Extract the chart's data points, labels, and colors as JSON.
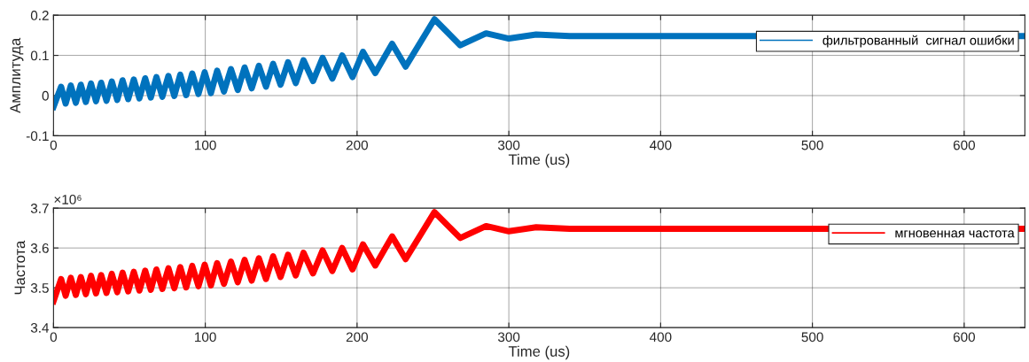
{
  "chart_data": [
    {
      "type": "line",
      "xlabel": "Time (us)",
      "ylabel": "Амплитуда",
      "x": [
        0,
        5,
        8,
        11.4,
        14.7,
        18,
        21.3,
        24.7,
        28,
        31.4,
        34.9,
        38.4,
        42,
        45.5,
        49.2,
        52.9,
        56.6,
        60.4,
        64.1,
        67.8,
        71.7,
        75.7,
        79.6,
        83.5,
        87.4,
        91.4,
        95.5,
        99.6,
        103.7,
        107.8,
        112.3,
        116.9,
        121.4,
        125.9,
        130.6,
        135.3,
        140,
        144.7,
        149.6,
        154.5,
        159.6,
        164.7,
        171,
        177.3,
        183.7,
        190.2,
        197,
        203.9,
        212,
        223.1,
        232,
        251,
        268,
        285,
        300,
        318,
        340,
        640
      ],
      "series": [
        {
          "name": "фильтрованный  сигнал ошибки",
          "color": "#0072bd",
          "values": [
            -0.028,
            0.022,
            -0.02,
            0.025,
            -0.018,
            0.027,
            -0.016,
            0.03,
            -0.014,
            0.032,
            -0.013,
            0.035,
            -0.011,
            0.038,
            -0.009,
            0.04,
            -0.007,
            0.043,
            -0.005,
            0.046,
            -0.003,
            0.049,
            -0.001,
            0.052,
            0.001,
            0.055,
            0.004,
            0.058,
            0.006,
            0.062,
            0.01,
            0.066,
            0.014,
            0.07,
            0.018,
            0.074,
            0.022,
            0.079,
            0.027,
            0.083,
            0.031,
            0.088,
            0.036,
            0.094,
            0.042,
            0.1,
            0.046,
            0.109,
            0.056,
            0.129,
            0.072,
            0.19,
            0.125,
            0.155,
            0.142,
            0.152,
            0.148,
            0.148
          ]
        }
      ],
      "xlim": [
        0,
        640
      ],
      "xticks": [
        0,
        100,
        200,
        300,
        400,
        500,
        600
      ],
      "ylim": [
        -0.1,
        0.2
      ],
      "yticks": [
        -0.1,
        0,
        0.1,
        0.2
      ],
      "grid": true,
      "legend": "top right",
      "line_style": "solid"
    },
    {
      "type": "line",
      "xlabel": "Time (us)",
      "ylabel": "Частота",
      "annotations": [
        "×10⁶"
      ],
      "x": [
        0,
        5,
        8,
        11.4,
        14.7,
        18,
        21.3,
        24.7,
        28,
        31.4,
        34.9,
        38.4,
        42,
        45.5,
        49.2,
        52.9,
        56.6,
        60.4,
        64.1,
        67.8,
        71.7,
        75.7,
        79.6,
        83.5,
        87.4,
        91.4,
        95.5,
        99.6,
        103.7,
        107.8,
        112.3,
        116.9,
        121.4,
        125.9,
        130.6,
        135.3,
        140,
        144.7,
        149.6,
        154.5,
        159.6,
        164.7,
        171,
        177.3,
        183.7,
        190.2,
        197,
        203.9,
        212,
        223.1,
        232,
        251,
        268,
        285,
        300,
        318,
        340,
        640
      ],
      "series": [
        {
          "name": "мгновенная частота",
          "color": "#ff0000",
          "values": [
            3.466,
            3.522,
            3.48,
            3.525,
            3.482,
            3.527,
            3.484,
            3.53,
            3.486,
            3.532,
            3.487,
            3.535,
            3.489,
            3.538,
            3.491,
            3.54,
            3.493,
            3.543,
            3.495,
            3.546,
            3.497,
            3.549,
            3.499,
            3.552,
            3.501,
            3.555,
            3.504,
            3.558,
            3.506,
            3.562,
            3.51,
            3.566,
            3.514,
            3.57,
            3.518,
            3.574,
            3.522,
            3.579,
            3.527,
            3.583,
            3.531,
            3.588,
            3.536,
            3.594,
            3.542,
            3.6,
            3.546,
            3.609,
            3.556,
            3.629,
            3.572,
            3.69,
            3.625,
            3.655,
            3.642,
            3.652,
            3.648,
            3.648
          ]
        }
      ],
      "xlim": [
        0,
        640
      ],
      "xticks": [
        0,
        100,
        200,
        300,
        400,
        500,
        600
      ],
      "ylim": [
        3.4,
        3.7
      ],
      "yticks": [
        3.4,
        3.5,
        3.6,
        3.7
      ],
      "grid": true,
      "legend": "top right",
      "line_style": "solid"
    }
  ]
}
